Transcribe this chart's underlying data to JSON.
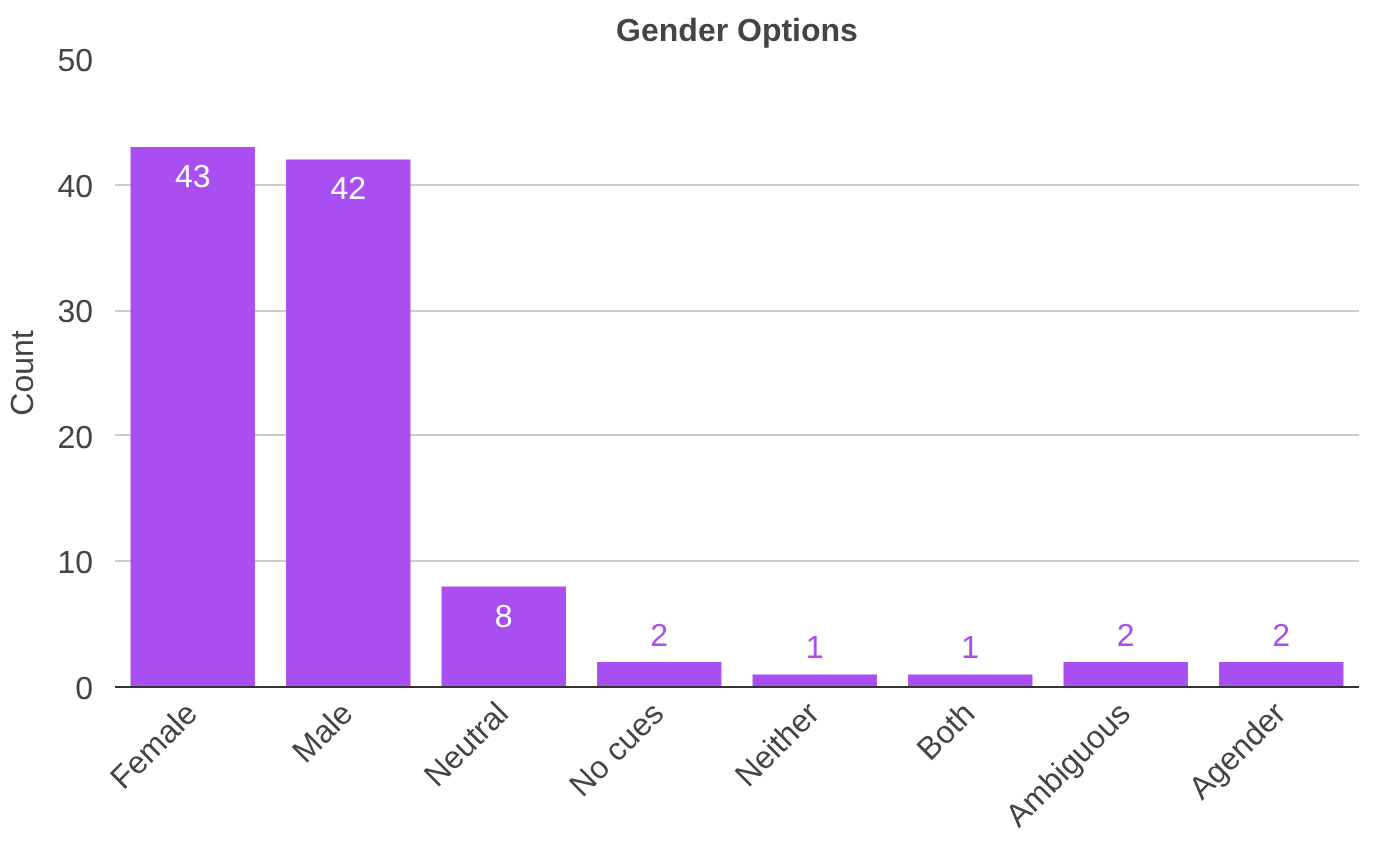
{
  "chart_data": {
    "type": "bar",
    "title": "Gender Options",
    "ylabel": "Count",
    "categories": [
      "Female",
      "Male",
      "Neutral",
      "No cues",
      "Neither",
      "Both",
      "Ambiguous",
      "Agender"
    ],
    "values": [
      43,
      42,
      8,
      2,
      1,
      1,
      2,
      2
    ],
    "color": "#a94ef0",
    "ylim": [
      0,
      50
    ],
    "yticks": [
      0,
      10,
      20,
      30,
      40,
      50
    ],
    "grid": "y",
    "data_labels": true
  }
}
